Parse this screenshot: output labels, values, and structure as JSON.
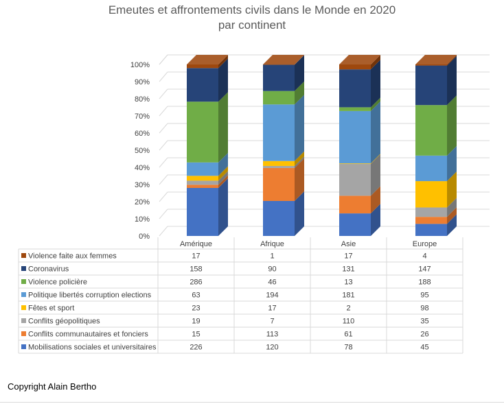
{
  "chart_data": {
    "type": "bar",
    "stacked": "percent",
    "title": "Emeutes et affrontements civils dans le Monde en 2020",
    "subtitle": "par continent",
    "categories": [
      "Amérique",
      "Afrique",
      "Asie",
      "Europe"
    ],
    "y_ticks": [
      "0%",
      "10%",
      "20%",
      "30%",
      "40%",
      "50%",
      "60%",
      "70%",
      "80%",
      "90%",
      "100%"
    ],
    "ylim": [
      0,
      100
    ],
    "grid": true,
    "legend": "data-table",
    "series": [
      {
        "name": "Mobilisations sociales et universitaires",
        "color": "#4472C4",
        "values": [
          226,
          120,
          78,
          45
        ]
      },
      {
        "name": "Conflits communautaires et fonciers",
        "color": "#ED7D31",
        "values": [
          15,
          113,
          61,
          26
        ]
      },
      {
        "name": "Conflits géopolitiques",
        "color": "#A5A5A5",
        "values": [
          19,
          7,
          110,
          35
        ]
      },
      {
        "name": "Fêtes et sport",
        "color": "#FFC000",
        "values": [
          23,
          17,
          2,
          98
        ]
      },
      {
        "name": "Politique libertés corruption elections",
        "color": "#5B9BD5",
        "values": [
          63,
          194,
          181,
          95
        ]
      },
      {
        "name": "Violence policière",
        "color": "#70AD47",
        "values": [
          286,
          46,
          13,
          188
        ]
      },
      {
        "name": "Coronavirus",
        "color": "#264478",
        "values": [
          158,
          90,
          131,
          147
        ]
      },
      {
        "name": "Violence faite aux femmes",
        "color": "#9E480E",
        "values": [
          17,
          1,
          17,
          4
        ]
      }
    ]
  },
  "footer": {
    "copyright": "Copyright Alain Bertho"
  }
}
